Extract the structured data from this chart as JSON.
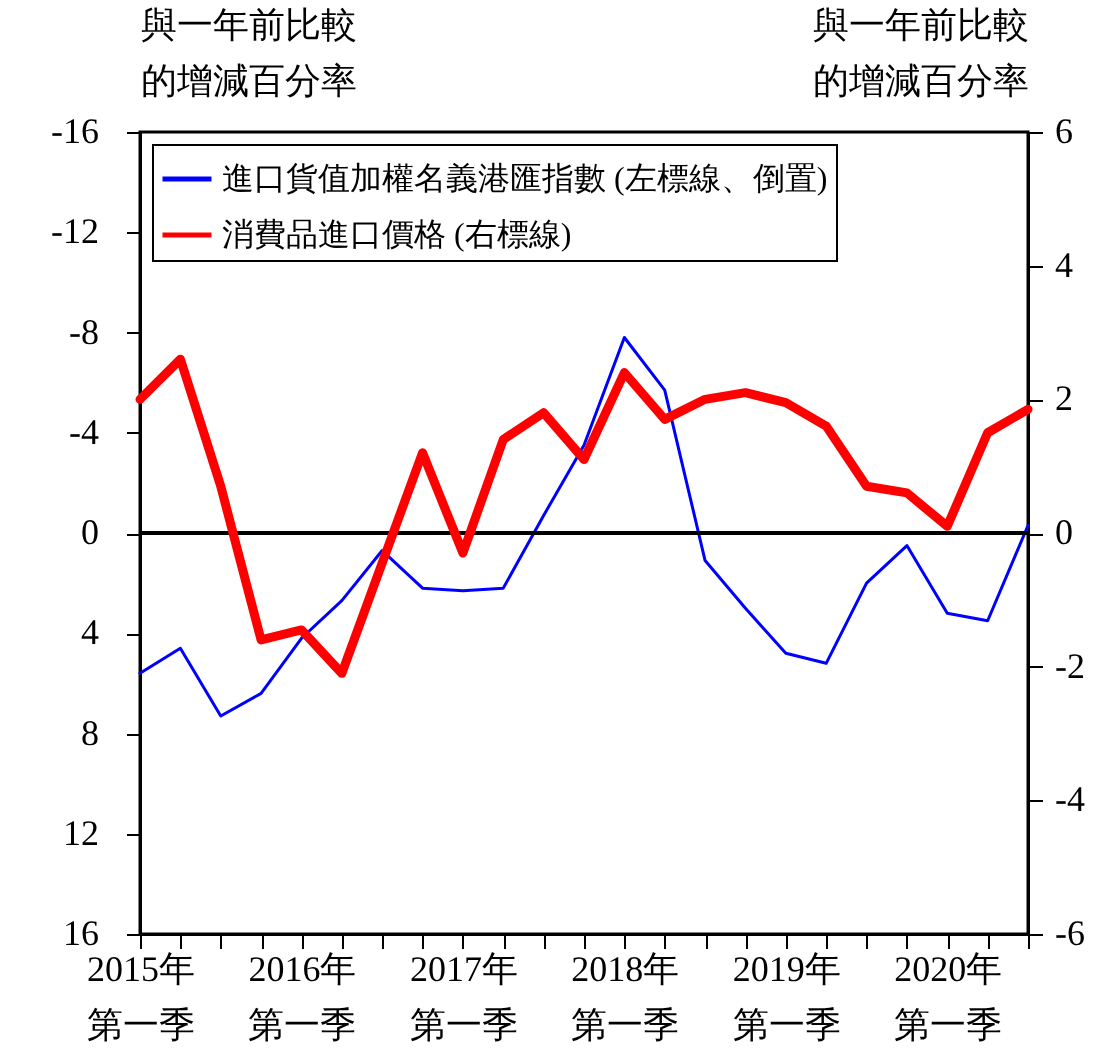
{
  "chart_data": {
    "type": "line",
    "x": [
      2015,
      2015.25,
      2015.5,
      2015.75,
      2016,
      2016.25,
      2016.5,
      2016.75,
      2017,
      2017.25,
      2017.5,
      2017.75,
      2018,
      2018.25,
      2018.5,
      2018.75,
      2019,
      2019.25,
      2019.5,
      2019.75,
      2020,
      2020.25,
      2020.5
    ],
    "xlim": [
      2015,
      2020.5
    ],
    "xticks": [
      {
        "value": 2015,
        "label": "2015年第一季"
      },
      {
        "value": 2015.25,
        "label": null
      },
      {
        "value": 2015.5,
        "label": null
      },
      {
        "value": 2015.75,
        "label": null
      },
      {
        "value": 2016,
        "label": "2016年第一季"
      },
      {
        "value": 2016.25,
        "label": null
      },
      {
        "value": 2016.5,
        "label": null
      },
      {
        "value": 2016.75,
        "label": null
      },
      {
        "value": 2017,
        "label": "2017年第一季"
      },
      {
        "value": 2017.25,
        "label": null
      },
      {
        "value": 2017.5,
        "label": null
      },
      {
        "value": 2017.75,
        "label": null
      },
      {
        "value": 2018,
        "label": "2018年第一季"
      },
      {
        "value": 2018.25,
        "label": null
      },
      {
        "value": 2018.5,
        "label": null
      },
      {
        "value": 2018.75,
        "label": null
      },
      {
        "value": 2019,
        "label": "2019年第一季"
      },
      {
        "value": 2019.25,
        "label": null
      },
      {
        "value": 2019.5,
        "label": null
      },
      {
        "value": 2019.75,
        "label": null
      },
      {
        "value": 2020,
        "label": "2020年第一季"
      },
      {
        "value": 2020.25,
        "label": null
      },
      {
        "value": 2020.5,
        "label": null
      }
    ],
    "ylabel": "與一年前比較的增減百分率",
    "y2label": "與一年前比較的增減百分率",
    "ylim": [
      16,
      -16
    ],
    "yticks": [
      -16,
      -12,
      -8,
      -4,
      0,
      4,
      8,
      12,
      16
    ],
    "y2lim": [
      -6,
      6
    ],
    "y2ticks": [
      -6,
      -4,
      -2,
      0,
      2,
      4,
      6
    ],
    "legend": "top left",
    "grid": false,
    "ref_lines": [
      {
        "axis": "y",
        "value": 0,
        "color": "#000000"
      }
    ],
    "series": [
      {
        "name": "進口貨值加權名義港匯指數 (左標線、倒置)",
        "color": "#0000ff",
        "values": [
          5.6,
          4.6,
          7.3,
          6.4,
          4.2,
          2.7,
          0.7,
          2.2,
          2.3,
          2.2,
          -0.7,
          -3.5,
          -7.8,
          -5.7,
          1.1,
          3.0,
          4.8,
          5.2,
          2.0,
          0.5,
          3.2,
          3.5,
          -0.3
        ]
      },
      {
        "name": "消費品進口價格 (右標線)",
        "color": "#ff0000",
        "axis": "y2",
        "values": [
          2.0,
          2.6,
          0.7,
          -1.6,
          -1.45,
          -2.1,
          -0.45,
          1.2,
          -0.3,
          1.4,
          1.8,
          1.1,
          2.4,
          1.7,
          2.0,
          2.1,
          1.95,
          1.6,
          0.7,
          0.6,
          0.1,
          1.5,
          1.85
        ]
      }
    ]
  }
}
